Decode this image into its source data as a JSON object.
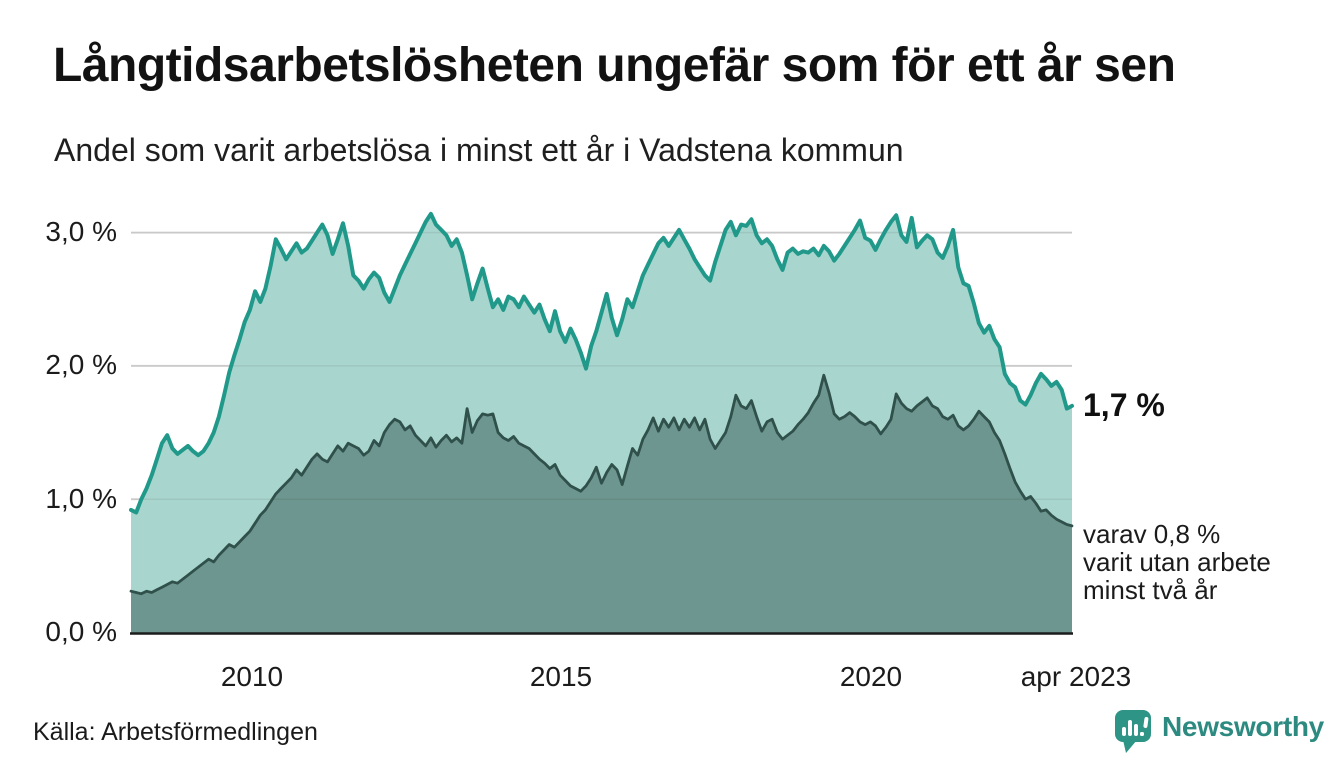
{
  "title": "Långtidsarbetslösheten ungefär som för ett år sen",
  "subtitle": "Andel som varit arbetslösa i minst ett år i Vadstena kommun",
  "source": "Källa: Arbetsförmedlingen",
  "branding": {
    "name": "Newsworthy",
    "icon": "bar-chart-speech-bubble",
    "icon_color": "#2e9486",
    "text_color": "#2c8a80"
  },
  "annotations": {
    "latest_total": "1,7 %",
    "note_lines": [
      "varav 0,8 %",
      "varit utan arbete",
      "minst två år"
    ]
  },
  "colors": {
    "series1_line": "#21998a",
    "series1_fill": "#a8d6ce",
    "series2_line": "#30504b",
    "series2_fill": "#6e9690",
    "gridline": "#d9d9d9",
    "axis": "#1c1c1c",
    "text": "#1b1b1b"
  },
  "chart_data": {
    "type": "area",
    "title": "Långtidsarbetslösheten ungefär som för ett år sen",
    "subtitle": "Andel som varit arbetslösa i minst ett år i Vadstena kommun",
    "frequency": "monthly",
    "x_start": "2008-02",
    "x_end": "2023-04",
    "ylim": [
      0,
      3.2
    ],
    "grid": "horizontal",
    "y_ticks": [
      0,
      1,
      2,
      3
    ],
    "y_tick_labels": [
      "0,0 %",
      "1,0 %",
      "2,0 %",
      "3,0 %"
    ],
    "x_tick_labels": [
      "2010",
      "2015",
      "2020",
      "apr 2023"
    ],
    "x_tick_month_indices": [
      23,
      83,
      143,
      182
    ],
    "series": [
      {
        "name": "Arbetslösa minst ett år",
        "latest_value": 1.7,
        "line_color": "#21998a",
        "fill_color": "#a8d6ce",
        "values": [
          0.92,
          0.9,
          1.0,
          1.08,
          1.18,
          1.3,
          1.42,
          1.48,
          1.38,
          1.34,
          1.37,
          1.4,
          1.36,
          1.33,
          1.36,
          1.42,
          1.5,
          1.62,
          1.78,
          1.95,
          2.08,
          2.2,
          2.33,
          2.42,
          2.56,
          2.48,
          2.58,
          2.75,
          2.95,
          2.88,
          2.8,
          2.86,
          2.92,
          2.85,
          2.88,
          2.94,
          3.0,
          3.06,
          2.98,
          2.84,
          2.95,
          3.07,
          2.9,
          2.68,
          2.64,
          2.58,
          2.65,
          2.7,
          2.66,
          2.55,
          2.48,
          2.58,
          2.68,
          2.76,
          2.84,
          2.92,
          3.0,
          3.08,
          3.14,
          3.06,
          3.02,
          2.98,
          2.9,
          2.95,
          2.85,
          2.68,
          2.5,
          2.62,
          2.73,
          2.58,
          2.44,
          2.5,
          2.42,
          2.52,
          2.5,
          2.44,
          2.52,
          2.46,
          2.4,
          2.46,
          2.35,
          2.26,
          2.41,
          2.26,
          2.18,
          2.28,
          2.2,
          2.1,
          1.98,
          2.15,
          2.26,
          2.4,
          2.54,
          2.36,
          2.23,
          2.35,
          2.5,
          2.44,
          2.56,
          2.68,
          2.76,
          2.84,
          2.92,
          2.96,
          2.9,
          2.96,
          3.02,
          2.95,
          2.88,
          2.8,
          2.74,
          2.68,
          2.64,
          2.78,
          2.9,
          3.02,
          3.08,
          2.98,
          3.06,
          3.05,
          3.1,
          2.98,
          2.92,
          2.95,
          2.9,
          2.8,
          2.72,
          2.85,
          2.88,
          2.84,
          2.86,
          2.85,
          2.88,
          2.83,
          2.9,
          2.86,
          2.79,
          2.84,
          2.9,
          2.96,
          3.02,
          3.09,
          2.96,
          2.94,
          2.87,
          2.95,
          3.02,
          3.08,
          3.13,
          2.98,
          2.93,
          3.11,
          2.89,
          2.94,
          2.98,
          2.95,
          2.85,
          2.81,
          2.9,
          3.02,
          2.74,
          2.62,
          2.6,
          2.47,
          2.32,
          2.25,
          2.3,
          2.2,
          2.14,
          1.94,
          1.87,
          1.84,
          1.74,
          1.71,
          1.78,
          1.87,
          1.94,
          1.9,
          1.85,
          1.88,
          1.82,
          1.68,
          1.7
        ]
      },
      {
        "name": "varav arbetslösa minst två år",
        "latest_value": 0.8,
        "line_color": "#30504b",
        "fill_color": "#6e9690",
        "values": [
          0.31,
          0.3,
          0.29,
          0.31,
          0.3,
          0.32,
          0.34,
          0.36,
          0.38,
          0.37,
          0.4,
          0.43,
          0.46,
          0.49,
          0.52,
          0.55,
          0.53,
          0.58,
          0.62,
          0.66,
          0.64,
          0.68,
          0.72,
          0.76,
          0.82,
          0.88,
          0.92,
          0.98,
          1.04,
          1.08,
          1.12,
          1.16,
          1.22,
          1.18,
          1.24,
          1.3,
          1.34,
          1.3,
          1.28,
          1.34,
          1.4,
          1.36,
          1.42,
          1.4,
          1.38,
          1.33,
          1.36,
          1.44,
          1.4,
          1.5,
          1.56,
          1.6,
          1.58,
          1.52,
          1.55,
          1.48,
          1.44,
          1.4,
          1.46,
          1.39,
          1.44,
          1.48,
          1.43,
          1.46,
          1.42,
          1.68,
          1.5,
          1.59,
          1.64,
          1.63,
          1.64,
          1.5,
          1.46,
          1.44,
          1.47,
          1.42,
          1.4,
          1.38,
          1.34,
          1.3,
          1.27,
          1.23,
          1.26,
          1.18,
          1.14,
          1.1,
          1.08,
          1.06,
          1.1,
          1.16,
          1.24,
          1.12,
          1.2,
          1.26,
          1.22,
          1.11,
          1.25,
          1.38,
          1.33,
          1.45,
          1.52,
          1.61,
          1.51,
          1.6,
          1.54,
          1.61,
          1.52,
          1.6,
          1.54,
          1.61,
          1.52,
          1.6,
          1.45,
          1.38,
          1.44,
          1.5,
          1.62,
          1.78,
          1.7,
          1.68,
          1.74,
          1.62,
          1.51,
          1.58,
          1.6,
          1.5,
          1.45,
          1.48,
          1.51,
          1.56,
          1.6,
          1.65,
          1.72,
          1.78,
          1.93,
          1.8,
          1.64,
          1.6,
          1.62,
          1.65,
          1.62,
          1.58,
          1.56,
          1.58,
          1.55,
          1.49,
          1.54,
          1.6,
          1.79,
          1.72,
          1.68,
          1.66,
          1.7,
          1.73,
          1.76,
          1.7,
          1.68,
          1.62,
          1.6,
          1.63,
          1.55,
          1.52,
          1.55,
          1.6,
          1.66,
          1.62,
          1.58,
          1.5,
          1.44,
          1.34,
          1.23,
          1.13,
          1.06,
          1.0,
          1.02,
          0.97,
          0.91,
          0.92,
          0.88,
          0.85,
          0.83,
          0.81,
          0.8
        ]
      }
    ]
  }
}
